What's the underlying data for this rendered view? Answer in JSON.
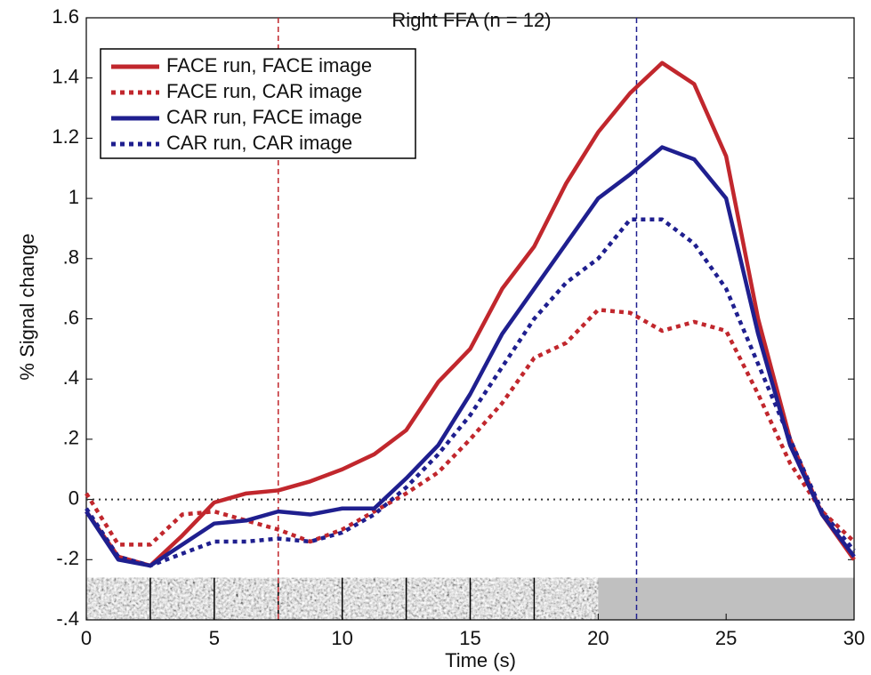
{
  "chart_data": {
    "type": "line",
    "title": "Right FFA (n = 12)",
    "x_label": "Time (s)",
    "y_label": "% Signal change",
    "x": [
      0,
      1.25,
      2.5,
      3.75,
      5,
      6.25,
      7.5,
      8.75,
      10,
      11.25,
      12.5,
      13.75,
      15,
      16.25,
      17.5,
      18.75,
      20,
      21.25,
      22.5,
      23.75,
      25,
      26.25,
      27.5,
      28.75,
      30
    ],
    "series": [
      {
        "name": "FACE run, FACE image",
        "color": "#c1272d",
        "line_style": "solid",
        "values": [
          -0.04,
          -0.19,
          -0.22,
          -0.12,
          -0.01,
          0.02,
          0.03,
          0.06,
          0.1,
          0.15,
          0.23,
          0.39,
          0.5,
          0.7,
          0.84,
          1.05,
          1.22,
          1.35,
          1.45,
          1.38,
          1.14,
          0.6,
          0.2,
          -0.05,
          -0.2
        ]
      },
      {
        "name": "FACE run, CAR image",
        "color": "#c1272d",
        "line_style": "dotted",
        "values": [
          0.02,
          -0.15,
          -0.15,
          -0.05,
          -0.04,
          -0.07,
          -0.1,
          -0.14,
          -0.1,
          -0.04,
          0.02,
          0.09,
          0.2,
          0.32,
          0.47,
          0.52,
          0.63,
          0.62,
          0.56,
          0.59,
          0.56,
          0.35,
          0.12,
          -0.04,
          -0.14
        ]
      },
      {
        "name": "CAR run, FACE image",
        "color": "#1f1f8f",
        "line_style": "solid",
        "values": [
          -0.04,
          -0.2,
          -0.22,
          -0.15,
          -0.08,
          -0.07,
          -0.04,
          -0.05,
          -0.03,
          -0.03,
          0.07,
          0.18,
          0.35,
          0.55,
          0.7,
          0.85,
          1.0,
          1.08,
          1.17,
          1.13,
          1.0,
          0.55,
          0.18,
          -0.05,
          -0.19
        ]
      },
      {
        "name": "CAR run, CAR image",
        "color": "#1f1f8f",
        "line_style": "dotted",
        "values": [
          -0.03,
          -0.19,
          -0.22,
          -0.18,
          -0.14,
          -0.14,
          -0.13,
          -0.14,
          -0.11,
          -0.05,
          0.04,
          0.15,
          0.28,
          0.44,
          0.6,
          0.72,
          0.8,
          0.93,
          0.93,
          0.85,
          0.7,
          0.45,
          0.2,
          -0.04,
          -0.17
        ]
      }
    ],
    "xlim": [
      0,
      30
    ],
    "xticks": [
      0,
      5,
      10,
      15,
      20,
      25,
      30
    ],
    "ylim": [
      -0.4,
      1.6
    ],
    "yticks": [
      {
        "value": -0.4,
        "label": "-.4"
      },
      {
        "value": -0.2,
        "label": "-.2"
      },
      0,
      {
        "value": 0.2,
        "label": ".2"
      },
      {
        "value": 0.4,
        "label": ".4"
      },
      {
        "value": 0.6,
        "label": ".6"
      },
      {
        "value": 0.8,
        "label": ".8"
      },
      1,
      {
        "value": 1.2,
        "label": "1.2"
      },
      {
        "value": 1.4,
        "label": "1.4"
      },
      {
        "value": 1.6,
        "label": "1.6"
      }
    ],
    "reference_lines": [
      {
        "x": 7.5,
        "color": "#c1272d"
      },
      {
        "x": 21.5,
        "color": "#1f1f8f"
      }
    ],
    "zero_line": 0,
    "stimulus_strip": {
      "images_xlim": [
        0,
        20
      ],
      "blank_xlim": [
        20,
        30
      ],
      "ylim": [
        -0.4,
        -0.26
      ],
      "frame_step": 2.5
    },
    "legend": "upper left"
  }
}
